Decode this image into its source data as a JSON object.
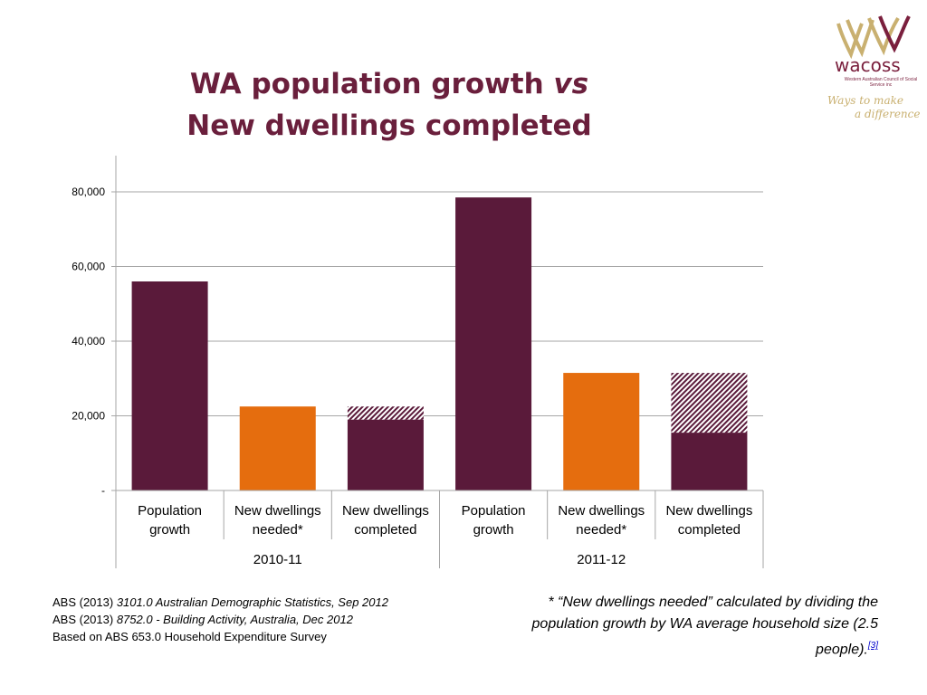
{
  "slide": {
    "title_line1_main": "WA population growth ",
    "title_line1_italic": "vs",
    "title_line2": "New dwellings completed"
  },
  "logo": {
    "name": "wacoss",
    "subtitle": "Western Australian Council of Social Service inc",
    "tagline1": "Ways to make",
    "tagline2": "a difference",
    "colors": {
      "primary": "#7a1f3d",
      "gold": "#c9b070"
    }
  },
  "chart_data": {
    "type": "bar",
    "stacked": true,
    "groups": [
      {
        "label": "2010-11",
        "categories": [
          "Population growth",
          "New dwellings needed*",
          "New dwellings completed"
        ]
      },
      {
        "label": "2011-12",
        "categories": [
          "Population growth",
          "New dwellings needed*",
          "New dwellings completed"
        ]
      }
    ],
    "bars": [
      {
        "group": "2010-11",
        "category_lines": [
          "Population",
          "growth"
        ],
        "segments": [
          {
            "value": 56000,
            "style": "solid",
            "color": "#5a1a3a"
          }
        ]
      },
      {
        "group": "2010-11",
        "category_lines": [
          "New dwellings",
          "needed*"
        ],
        "segments": [
          {
            "value": 22500,
            "style": "solid",
            "color": "#e56d0e"
          }
        ]
      },
      {
        "group": "2010-11",
        "category_lines": [
          "New dwellings",
          "completed"
        ],
        "segments": [
          {
            "value": 19000,
            "style": "solid",
            "color": "#5a1a3a"
          },
          {
            "value": 3500,
            "style": "hatched",
            "color": "#5a1a3a"
          }
        ]
      },
      {
        "group": "2011-12",
        "category_lines": [
          "Population",
          "growth"
        ],
        "segments": [
          {
            "value": 78500,
            "style": "solid",
            "color": "#5a1a3a"
          }
        ]
      },
      {
        "group": "2011-12",
        "category_lines": [
          "New dwellings",
          "needed*"
        ],
        "segments": [
          {
            "value": 31500,
            "style": "solid",
            "color": "#e56d0e"
          }
        ]
      },
      {
        "group": "2011-12",
        "category_lines": [
          "New dwellings",
          "completed"
        ],
        "segments": [
          {
            "value": 15500,
            "style": "solid",
            "color": "#5a1a3a"
          },
          {
            "value": 16000,
            "style": "hatched",
            "color": "#5a1a3a"
          }
        ]
      }
    ],
    "y_ticks": [
      {
        "value": 0,
        "label": "-"
      },
      {
        "value": 20000,
        "label": "20,000"
      },
      {
        "value": 40000,
        "label": "40,000"
      },
      {
        "value": 60000,
        "label": "60,000"
      },
      {
        "value": 80000,
        "label": "80,000"
      }
    ],
    "ylim": [
      0,
      90000
    ],
    "grid": true,
    "legend": "none"
  },
  "sources": [
    {
      "plain": "ABS (2013) ",
      "italic": "3101.0 Australian Demographic Statistics, Sep 2012"
    },
    {
      "plain": "ABS (2013) ",
      "italic": "8752.0 - Building Activity, Australia, Dec 2012"
    },
    {
      "plain": "Based on ABS 653.0 Household Expenditure Survey",
      "italic": ""
    }
  ],
  "footnote": {
    "text": "* “New dwellings needed” calculated by dividing the population growth by WA average household size (2.5 people).",
    "ref": "[3]"
  }
}
